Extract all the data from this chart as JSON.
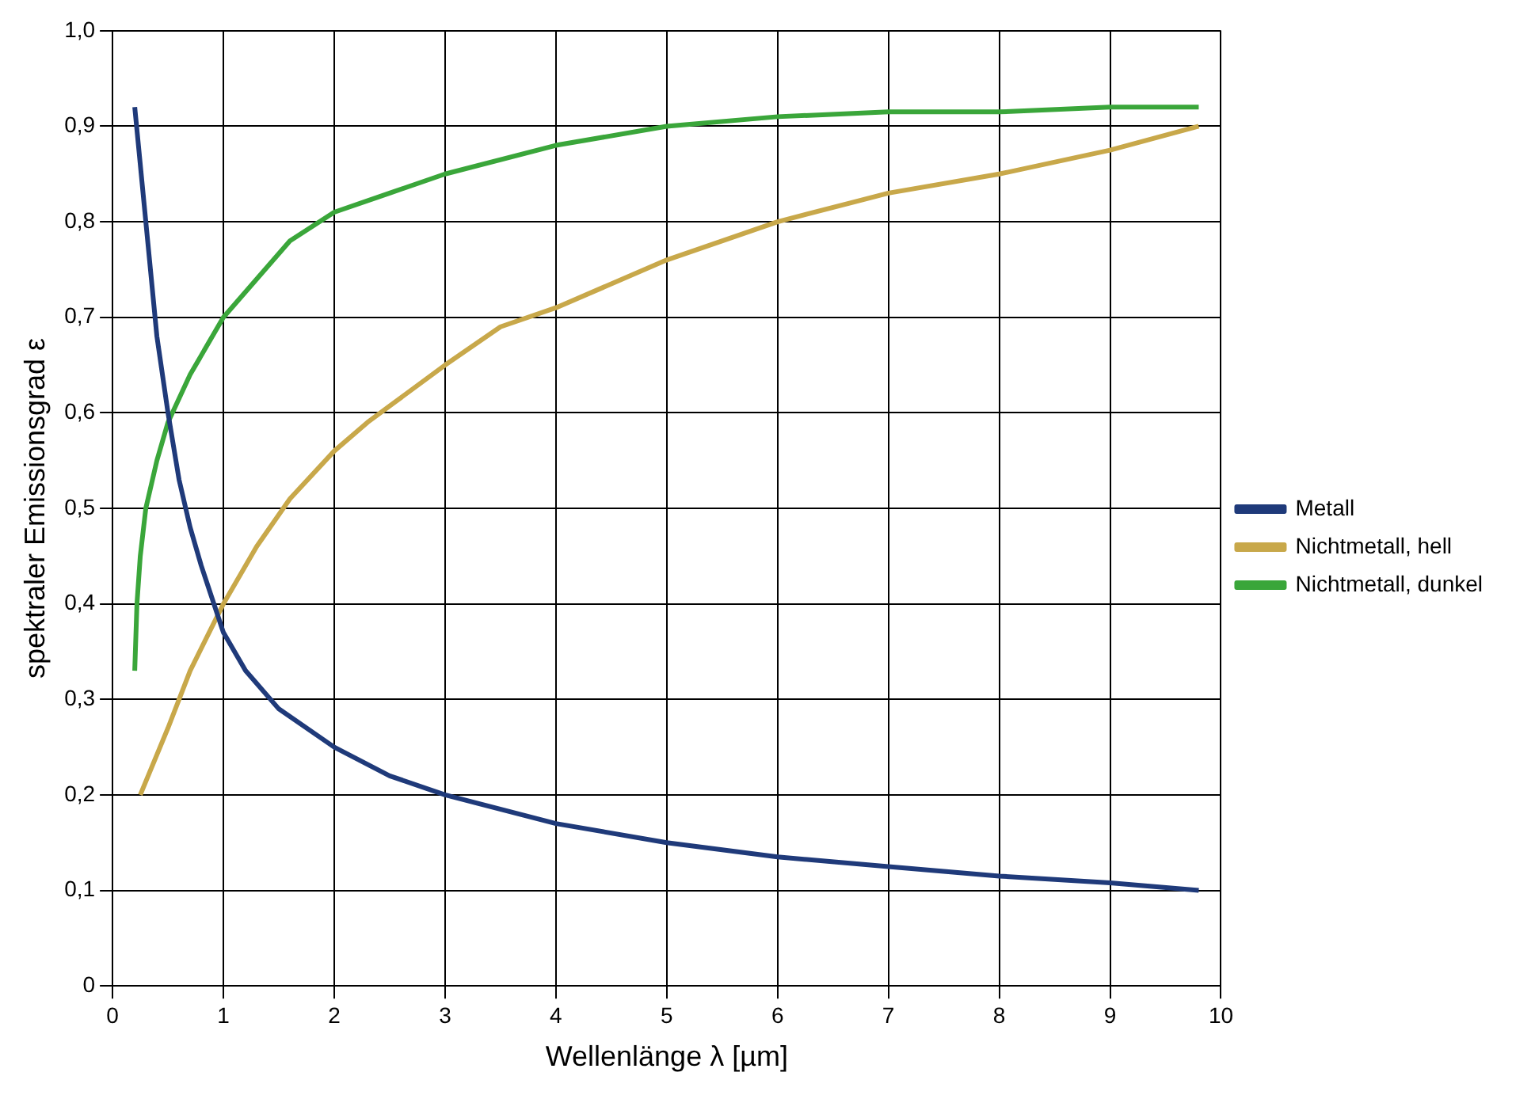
{
  "chart_data": {
    "type": "line",
    "xlabel": "Wellenlänge λ [µm]",
    "ylabel": "spektraler Emissionsgrad ε",
    "xlim": [
      0,
      10
    ],
    "xticks": [
      0,
      1,
      2,
      3,
      4,
      5,
      6,
      7,
      8,
      9,
      10
    ],
    "ylim": [
      0,
      1
    ],
    "yticks": [
      0,
      {
        "value": 0.1,
        "label": "0,1"
      },
      {
        "value": 0.2,
        "label": "0,2"
      },
      {
        "value": 0.3,
        "label": "0,3"
      },
      {
        "value": 0.4,
        "label": "0,4"
      },
      {
        "value": 0.5,
        "label": "0,5"
      },
      {
        "value": 0.6,
        "label": "0,6"
      },
      {
        "value": 0.7,
        "label": "0,7"
      },
      {
        "value": 0.8,
        "label": "0,8"
      },
      {
        "value": 0.9,
        "label": "0,9"
      },
      {
        "value": 1,
        "label": "1,0"
      }
    ],
    "grid": true,
    "legend": "right",
    "marker": "none",
    "line_style": "solid",
    "series": [
      {
        "name": "Metall",
        "color": "#1f3a7a",
        "x": [
          0.2,
          0.3,
          0.4,
          0.5,
          0.6,
          0.7,
          0.8,
          1,
          1.2,
          1.5,
          2,
          2.5,
          3,
          4,
          5,
          6,
          7,
          8,
          9,
          9.8
        ],
        "values": [
          0.92,
          0.8,
          0.68,
          0.6,
          0.53,
          0.48,
          0.44,
          0.37,
          0.33,
          0.29,
          0.25,
          0.22,
          0.2,
          0.17,
          0.15,
          0.135,
          0.125,
          0.115,
          0.108,
          0.1
        ]
      },
      {
        "name": "Nichtmetall, hell",
        "color": "#c8a84a",
        "x": [
          0.25,
          0.5,
          0.7,
          1,
          1.3,
          1.6,
          2,
          2.3,
          3,
          3.5,
          4,
          5,
          6,
          7,
          8,
          9,
          9.8
        ],
        "values": [
          0.2,
          0.27,
          0.33,
          0.4,
          0.46,
          0.51,
          0.56,
          0.59,
          0.65,
          0.69,
          0.71,
          0.76,
          0.8,
          0.83,
          0.85,
          0.875,
          0.9
        ]
      },
      {
        "name": "Nichtmetall, dunkel",
        "color": "#3aa63a",
        "x": [
          0.2,
          0.22,
          0.25,
          0.3,
          0.4,
          0.5,
          0.7,
          1,
          1.3,
          1.6,
          2,
          2.5,
          3,
          4,
          5,
          6,
          7,
          8,
          9,
          9.8
        ],
        "values": [
          0.33,
          0.4,
          0.45,
          0.5,
          0.55,
          0.59,
          0.64,
          0.7,
          0.74,
          0.78,
          0.81,
          0.83,
          0.85,
          0.88,
          0.9,
          0.91,
          0.915,
          0.915,
          0.92,
          0.92
        ]
      }
    ]
  }
}
